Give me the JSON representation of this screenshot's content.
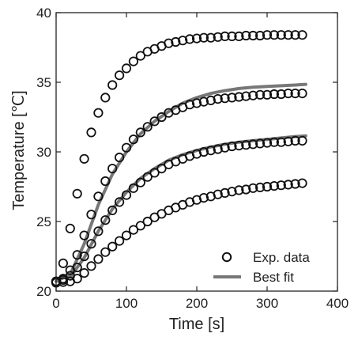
{
  "chart_data": {
    "type": "scatter",
    "xlabel": "Time [s]",
    "ylabel": "Temperature [℃]",
    "xlim": [
      0,
      400
    ],
    "ylim": [
      20,
      40
    ],
    "x_ticks": [
      "0",
      "100",
      "200",
      "300",
      "400"
    ],
    "y_ticks": [
      "20",
      "25",
      "30",
      "35",
      "40"
    ],
    "grid": false,
    "legend": {
      "position": "bottom-right",
      "entries": [
        {
          "label": "Exp. data",
          "marker": "open-circle"
        },
        {
          "label": "Best fit",
          "marker": "line"
        }
      ]
    },
    "colors": {
      "data": "#111111",
      "fit": "#777777"
    },
    "x": [
      0,
      10,
      20,
      30,
      40,
      50,
      60,
      70,
      80,
      90,
      100,
      110,
      120,
      130,
      140,
      150,
      160,
      170,
      180,
      190,
      200,
      210,
      220,
      230,
      240,
      250,
      260,
      270,
      280,
      290,
      300,
      310,
      320,
      330,
      340,
      350
    ],
    "series": [
      {
        "values": [
          20.7,
          22.0,
          24.5,
          27.0,
          29.5,
          31.4,
          32.8,
          33.9,
          34.8,
          35.5,
          36.0,
          36.5,
          36.9,
          37.2,
          37.4,
          37.6,
          37.8,
          37.9,
          38.0,
          38.1,
          38.15,
          38.2,
          38.2,
          38.25,
          38.3,
          38.3,
          38.3,
          38.35,
          38.35,
          38.35,
          38.4,
          38.4,
          38.4,
          38.4,
          38.4,
          38.4
        ]
      },
      {
        "values": [
          20.7,
          20.9,
          21.5,
          22.6,
          24.0,
          25.5,
          26.8,
          27.9,
          28.8,
          29.6,
          30.3,
          30.9,
          31.4,
          31.8,
          32.2,
          32.5,
          32.8,
          33.0,
          33.2,
          33.4,
          33.5,
          33.6,
          33.7,
          33.8,
          33.85,
          33.9,
          33.95,
          34.0,
          34.05,
          34.1,
          34.1,
          34.15,
          34.15,
          34.2,
          34.2,
          34.2
        ]
      },
      {
        "values": [
          20.7,
          20.8,
          21.1,
          21.7,
          22.5,
          23.4,
          24.3,
          25.1,
          25.8,
          26.4,
          26.9,
          27.4,
          27.8,
          28.2,
          28.5,
          28.8,
          29.1,
          29.3,
          29.5,
          29.7,
          29.85,
          30.0,
          30.1,
          30.2,
          30.3,
          30.4,
          30.45,
          30.5,
          30.55,
          30.6,
          30.65,
          30.7,
          30.7,
          30.75,
          30.8,
          30.8
        ]
      },
      {
        "values": [
          20.6,
          20.65,
          20.7,
          20.9,
          21.3,
          21.8,
          22.3,
          22.8,
          23.2,
          23.6,
          24.0,
          24.4,
          24.7,
          25.0,
          25.3,
          25.55,
          25.8,
          26.0,
          26.2,
          26.4,
          26.55,
          26.7,
          26.8,
          26.95,
          27.05,
          27.15,
          27.25,
          27.3,
          27.4,
          27.45,
          27.5,
          27.55,
          27.6,
          27.65,
          27.7,
          27.75
        ]
      }
    ],
    "fit_series": [
      {
        "x": [
          0,
          20,
          40,
          60,
          80,
          100,
          120,
          140,
          160,
          180,
          200,
          220,
          240,
          260,
          280,
          300,
          320,
          340,
          355
        ],
        "values": [
          20.7,
          21.2,
          23.4,
          26.2,
          28.4,
          30.0,
          31.3,
          32.2,
          32.9,
          33.5,
          33.9,
          34.2,
          34.4,
          34.55,
          34.65,
          34.7,
          34.75,
          34.8,
          34.85
        ]
      },
      {
        "x": [
          20,
          40,
          60,
          80,
          100,
          120,
          140,
          160,
          180,
          200,
          220,
          240,
          260,
          280,
          300,
          320,
          340,
          355
        ],
        "values": [
          21.0,
          22.4,
          24.3,
          25.9,
          27.1,
          28.1,
          28.8,
          29.4,
          29.8,
          30.1,
          30.35,
          30.55,
          30.7,
          30.8,
          30.9,
          31.0,
          31.1,
          31.15
        ]
      }
    ]
  }
}
